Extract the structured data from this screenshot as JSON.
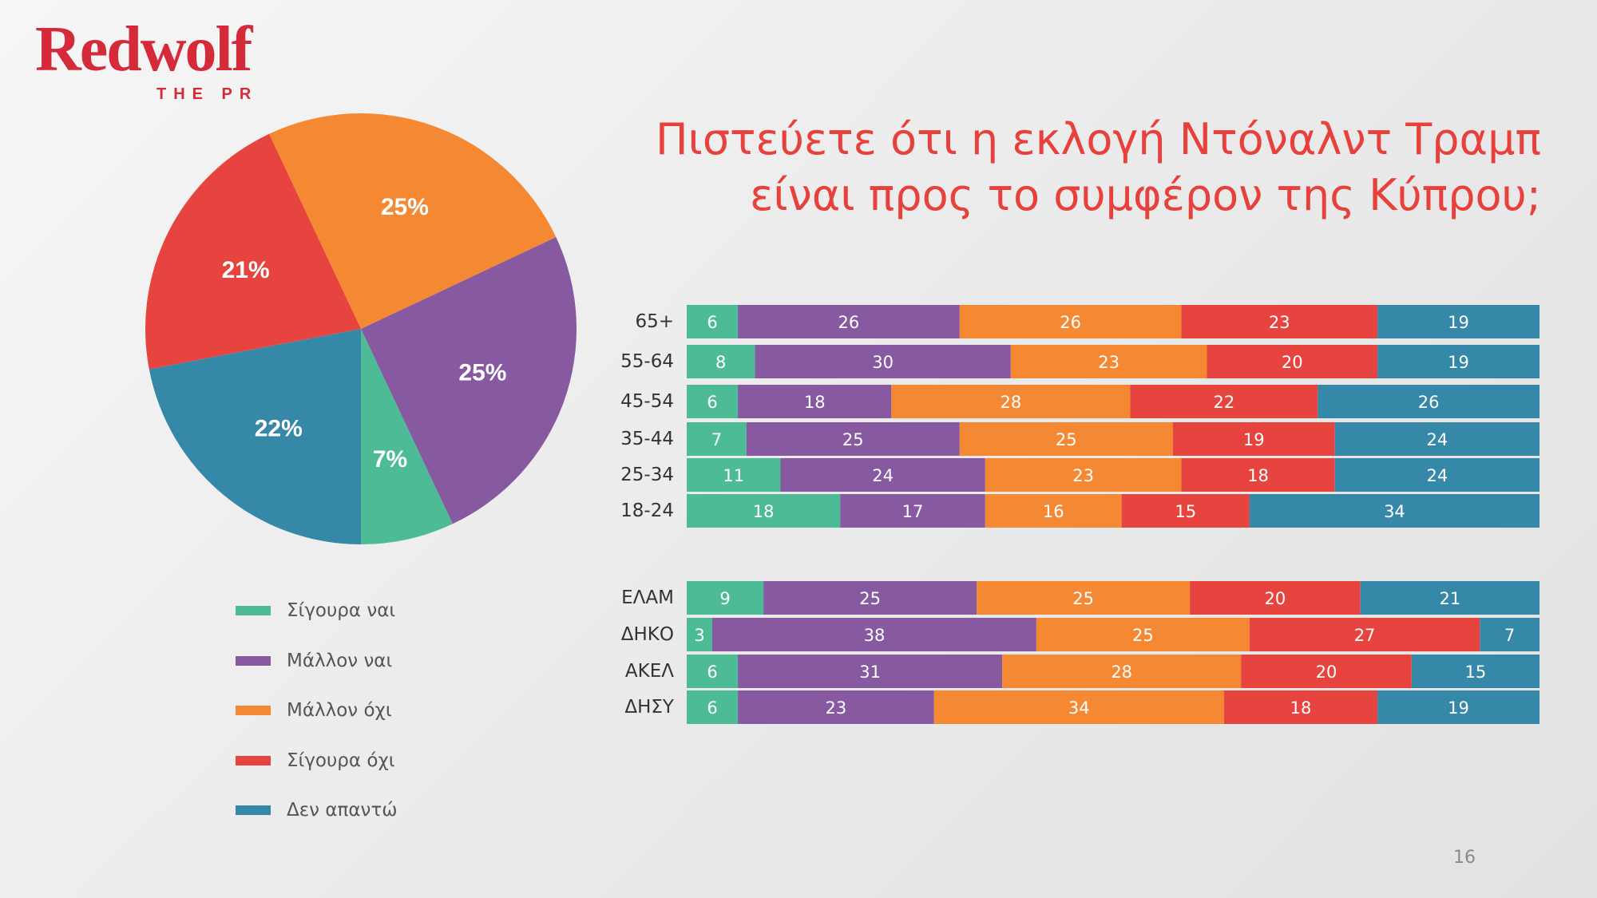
{
  "logo": {
    "brand": "Redwolf",
    "tagline": "THE PR"
  },
  "page_number": "16",
  "colors": {
    "sigoura_nai": "#4dbb96",
    "mallon_nai": "#8659a0",
    "mallon_oxi": "#f48833",
    "sigoura_oxi": "#e8443f",
    "den_apanto": "#3688a8",
    "title": "#e8413c",
    "logo": "#d42a3a"
  },
  "legend": [
    {
      "label": "Σίγουρα ναι",
      "color": "#4dbb96"
    },
    {
      "label": "Μάλλον ναι",
      "color": "#8659a0"
    },
    {
      "label": "Μάλλον όχι",
      "color": "#f48833"
    },
    {
      "label": "Σίγουρα  όχι",
      "color": "#e8443f"
    },
    {
      "label": "Δεν απαντώ",
      "color": "#3688a8"
    }
  ],
  "chart_data": [
    {
      "type": "pie",
      "title": "Πιστεύετε ότι η εκλογή Ντόναλντ Τραμπ είναι προς το συμφέρον της Κύπρου;",
      "title_lines": [
        "Πιστεύετε ότι η εκλογή Ντόναλντ Τραμπ",
        "είναι προς το συμφέρον της Κύπρου;"
      ],
      "categories": [
        "Σίγουρα ναι",
        "Μάλλον ναι",
        "Μάλλον όχι",
        "Σίγουρα  όχι",
        "Δεν απαντώ"
      ],
      "values": [
        7,
        25,
        25,
        21,
        22
      ],
      "labels": [
        "7%",
        "25%",
        "25%",
        "21%",
        "22%"
      ],
      "colors": [
        "#4dbb96",
        "#8659a0",
        "#f48833",
        "#e8443f",
        "#3688a8"
      ]
    },
    {
      "type": "bar",
      "orientation": "horizontal",
      "stacked": true,
      "categories": [
        "65+",
        "55-64",
        "45-54",
        "35-44",
        "25-34",
        "18-24"
      ],
      "series": [
        {
          "name": "Σίγουρα ναι",
          "color": "#4dbb96",
          "values": [
            6,
            8,
            6,
            7,
            11,
            18
          ]
        },
        {
          "name": "Μάλλον ναι",
          "color": "#8659a0",
          "values": [
            26,
            30,
            18,
            25,
            24,
            17
          ]
        },
        {
          "name": "Μάλλον όχι",
          "color": "#f48833",
          "values": [
            26,
            23,
            28,
            25,
            23,
            16
          ]
        },
        {
          "name": "Σίγουρα  όχι",
          "color": "#e8443f",
          "values": [
            23,
            20,
            22,
            19,
            18,
            15
          ]
        },
        {
          "name": "Δεν απαντώ",
          "color": "#3688a8",
          "values": [
            19,
            19,
            26,
            24,
            24,
            34
          ]
        }
      ]
    },
    {
      "type": "bar",
      "orientation": "horizontal",
      "stacked": true,
      "categories": [
        "ΕΛΑΜ",
        "ΔΗΚΟ",
        "ΑΚΕΛ",
        "ΔΗΣΥ"
      ],
      "series": [
        {
          "name": "Σίγουρα ναι",
          "color": "#4dbb96",
          "values": [
            9,
            3,
            6,
            6
          ]
        },
        {
          "name": "Μάλλον ναι",
          "color": "#8659a0",
          "values": [
            25,
            38,
            31,
            23
          ]
        },
        {
          "name": "Μάλλον όχι",
          "color": "#f48833",
          "values": [
            25,
            25,
            28,
            34
          ]
        },
        {
          "name": "Σίγουρα  όχι",
          "color": "#e8443f",
          "values": [
            20,
            27,
            20,
            18
          ]
        },
        {
          "name": "Δεν απαντώ",
          "color": "#3688a8",
          "values": [
            21,
            7,
            15,
            19
          ]
        }
      ]
    }
  ]
}
